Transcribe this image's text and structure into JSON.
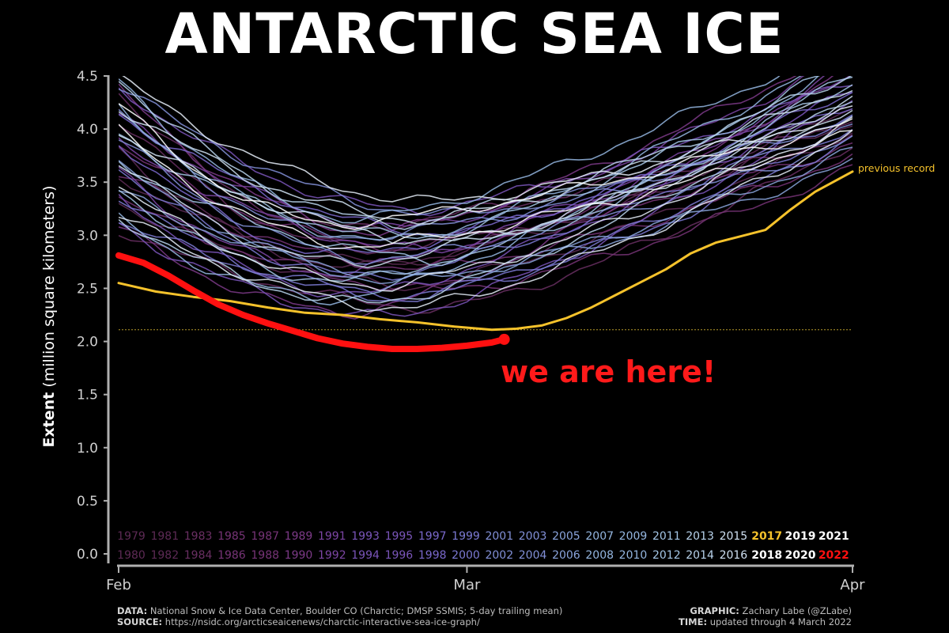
{
  "title": "ANTARCTIC SEA ICE",
  "y_axis": {
    "bold": "Extent",
    "rest": " (million square kilometers)"
  },
  "annotations": {
    "here": "we are here!",
    "record": "previous record"
  },
  "footer": {
    "data_label": "DATA:",
    "data_text": " National Snow & Ice Data Center, Boulder CO (Charctic; DMSP SSMIS; 5-day trailing mean)",
    "source_label": "SOURCE:",
    "source_text": " https://nsidc.org/arcticseaicenews/charctic-interactive-sea-ice-graph/",
    "graphic_label": "GRAPHIC:",
    "graphic_text": " Zachary Labe (@ZLabe)",
    "time_label": "TIME:",
    "time_text": " updated through 4 March 2022"
  },
  "colors": {
    "background": "#000000",
    "record": "#f5c22b",
    "current": "#ff1010",
    "axis": "#b0b0b0"
  },
  "chart_data": {
    "type": "line",
    "x_ticks": [
      "Feb",
      "Mar",
      "Apr"
    ],
    "y_ticks": [
      "0.0",
      "0.5",
      "1.0",
      "1.5",
      "2.0",
      "2.5",
      "3.0",
      "3.5",
      "4.0",
      "4.5"
    ],
    "ylim": [
      0,
      4.5
    ],
    "xlim_days": [
      0,
      59
    ],
    "reference_line": {
      "y": 2.11,
      "note": "record minimum level (dotted)"
    },
    "legend_years_row1": [
      "1979",
      "1981",
      "1983",
      "1985",
      "1987",
      "1989",
      "1991",
      "1993",
      "1995",
      "1997",
      "1999",
      "2001",
      "2003",
      "2005",
      "2007",
      "2009",
      "2011",
      "2013",
      "2015",
      "2017",
      "2019",
      "2021"
    ],
    "legend_years_row2": [
      "1980",
      "1982",
      "1984",
      "1986",
      "1988",
      "1990",
      "1992",
      "1994",
      "1996",
      "1998",
      "2000",
      "2002",
      "2004",
      "2006",
      "2008",
      "2010",
      "2012",
      "2014",
      "2016",
      "2018",
      "2020",
      "2022"
    ],
    "highlight": {
      "2017": {
        "x": [
          0,
          3,
          6,
          9,
          12,
          15,
          18,
          21,
          24,
          27,
          30,
          32,
          34,
          36,
          38,
          40,
          42,
          44,
          46,
          48,
          50,
          52,
          54,
          56,
          59
        ],
        "y": [
          2.55,
          2.47,
          2.42,
          2.38,
          2.32,
          2.27,
          2.25,
          2.21,
          2.18,
          2.14,
          2.11,
          2.12,
          2.15,
          2.22,
          2.32,
          2.44,
          2.56,
          2.68,
          2.83,
          2.93,
          2.99,
          3.05,
          3.24,
          3.41,
          3.6
        ]
      },
      "2022": {
        "x": [
          0,
          2,
          4,
          6,
          8,
          10,
          12,
          14,
          16,
          18,
          20,
          22,
          24,
          26,
          28,
          30,
          31
        ],
        "y": [
          2.81,
          2.74,
          2.62,
          2.48,
          2.35,
          2.25,
          2.17,
          2.1,
          2.03,
          1.98,
          1.95,
          1.93,
          1.93,
          1.94,
          1.96,
          1.99,
          2.02
        ]
      }
    },
    "background_years": "1979-2021 daily extent curves, approx. ranges: Feb 1 2.9-4.5, Feb 20 2.3-3.8, Apr 1 3.6-4.5"
  }
}
